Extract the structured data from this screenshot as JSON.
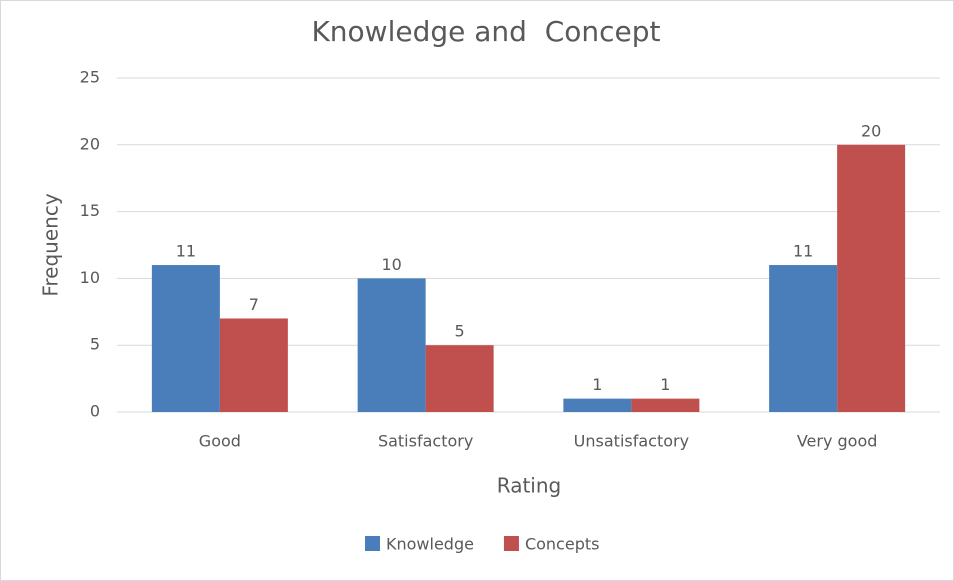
{
  "chart_data": {
    "type": "bar",
    "title": "Knowledge and  Concept",
    "x_label": "Rating",
    "y_label": "Frequency",
    "categories": [
      "Good",
      "Satisfactory",
      "Unsatisfactory",
      "Very good"
    ],
    "series": [
      {
        "name": "Knowledge",
        "color": "#4a7ebb",
        "values": [
          11,
          10,
          1,
          11
        ]
      },
      {
        "name": "Concepts",
        "color": "#c0504d",
        "values": [
          7,
          5,
          1,
          20
        ]
      }
    ],
    "ylim": [
      0,
      25
    ],
    "yticks": [
      0,
      5,
      10,
      15,
      20,
      25
    ],
    "grid": true,
    "legend": "bottom"
  }
}
